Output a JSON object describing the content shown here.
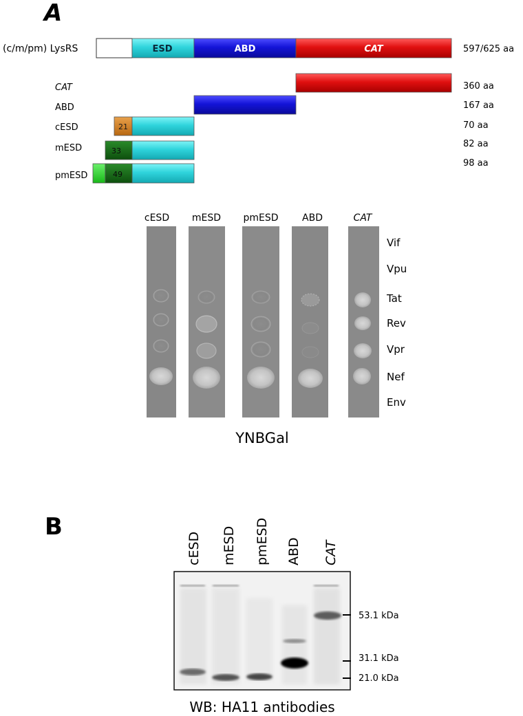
{
  "panel_a": {
    "label": "A",
    "full_protein": {
      "label": "(c/m/pm) LysRS",
      "size": "597/625 aa",
      "domains": [
        {
          "name": "ESD",
          "color": "#33d0d6"
        },
        {
          "name": "ABD",
          "color": "#1a17d8"
        },
        {
          "name": "CAT",
          "color": "#e01212"
        }
      ]
    },
    "constructs": [
      {
        "label": "CAT",
        "size": "360 aa"
      },
      {
        "label": "ABD",
        "size": "167 aa"
      },
      {
        "label": "cESD",
        "size": "70 aa",
        "tag": "21"
      },
      {
        "label": "mESD",
        "size": "82 aa",
        "tag": "33"
      },
      {
        "label": "pmESD",
        "size": "98 aa",
        "tag": "49"
      }
    ],
    "yeast_assay": {
      "columns": [
        "cESD",
        "mESD",
        "pmESD",
        "ABD",
        "CAT"
      ],
      "rows": [
        "Vif",
        "Vpu",
        "Tat",
        "Rev",
        "Vpr",
        "Nef",
        "Env"
      ],
      "medium": "YNBGal"
    }
  },
  "panel_b": {
    "label": "B",
    "lanes": [
      "cESD",
      "mESD",
      "pmESD",
      "ABD",
      "CAT"
    ],
    "markers": [
      "53.1 kDa",
      "31.1 kDa",
      "21.0 kDa"
    ],
    "caption": "WB: HA11 antibodies"
  }
}
